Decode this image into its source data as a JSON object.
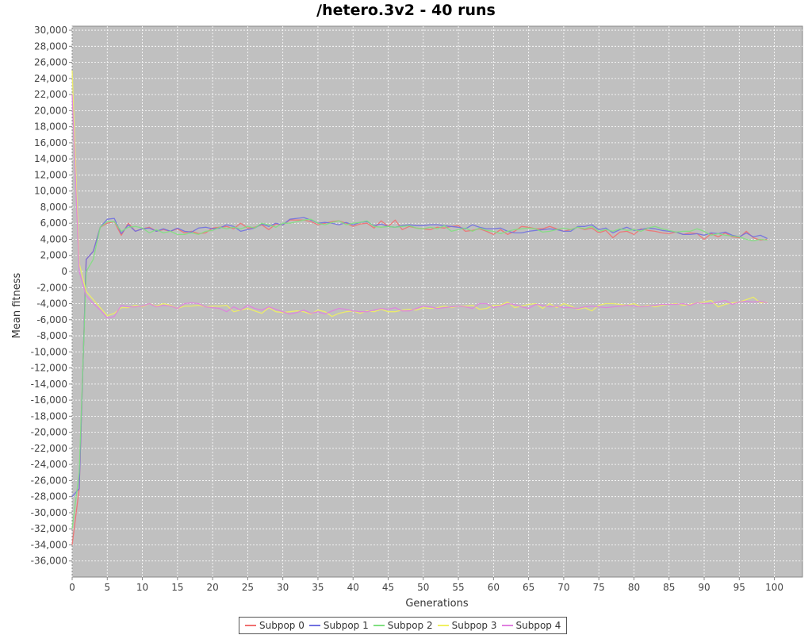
{
  "chart_data": {
    "type": "line",
    "title": "/hetero.3v2 - 40 runs",
    "xlabel": "Generations",
    "ylabel": "Mean fitness",
    "xlim": [
      0,
      104
    ],
    "ylim": [
      -38000,
      30500
    ],
    "xticks": [
      0,
      5,
      10,
      15,
      20,
      25,
      30,
      35,
      40,
      45,
      50,
      55,
      60,
      65,
      70,
      75,
      80,
      85,
      90,
      95,
      100
    ],
    "yticks": [
      30000,
      28000,
      26000,
      24000,
      22000,
      20000,
      18000,
      16000,
      14000,
      12000,
      10000,
      8000,
      6000,
      4000,
      2000,
      0,
      -2000,
      -4000,
      -6000,
      -8000,
      -10000,
      -12000,
      -14000,
      -16000,
      -18000,
      -20000,
      -22000,
      -24000,
      -26000,
      -28000,
      -30000,
      -32000,
      -34000,
      -36000
    ],
    "grid": true,
    "background": "#c0c0c0",
    "legend_position": "bottom",
    "x": [
      0,
      1,
      2,
      3,
      4,
      5,
      6,
      7,
      8,
      9,
      10,
      11,
      12,
      13,
      14,
      15,
      16,
      17,
      18,
      19,
      20,
      21,
      22,
      23,
      24,
      25,
      26,
      27,
      28,
      29,
      30,
      31,
      32,
      33,
      34,
      35,
      36,
      37,
      38,
      39,
      40,
      41,
      42,
      43,
      44,
      45,
      46,
      47,
      48,
      49,
      50,
      51,
      52,
      53,
      54,
      55,
      56,
      57,
      58,
      59,
      60,
      61,
      62,
      63,
      64,
      65,
      66,
      67,
      68,
      69,
      70,
      71,
      72,
      73,
      74,
      75,
      76,
      77,
      78,
      79,
      80,
      81,
      82,
      83,
      84,
      85,
      86,
      87,
      88,
      89,
      90,
      91,
      92,
      93,
      94,
      95,
      96,
      97,
      98,
      99
    ],
    "series": [
      {
        "name": "Subpop 0",
        "color": "#f07070",
        "values": [
          -34000,
          -27000,
          1500,
          2500,
          5500,
          6000,
          6200,
          4500,
          6000,
          5000,
          5300,
          5500,
          5000,
          5200,
          5000,
          5300,
          4800,
          5000,
          4700,
          4800,
          5400,
          5500,
          5600,
          5300,
          6000,
          5400,
          5500,
          5800,
          5200,
          5900,
          5800,
          6400,
          6400,
          6400,
          6200,
          5800,
          6000,
          6200,
          6300,
          6000,
          5600,
          5900,
          6000,
          5400,
          6300,
          5600,
          6400,
          5200,
          5600,
          5400,
          5300,
          5200,
          5500,
          5400,
          5600,
          5700,
          5000,
          5100,
          5300,
          5000,
          4600,
          5200,
          4600,
          5000,
          5600,
          5500,
          5300,
          5300,
          5600,
          5300,
          5000,
          5200,
          5500,
          5200,
          5400,
          4800,
          5100,
          4200,
          4900,
          5000,
          4600,
          5300,
          5100,
          5000,
          4800,
          4700,
          4900,
          4600,
          4800,
          4700,
          4000,
          4700,
          4300,
          4800,
          4300,
          4200,
          5000,
          4200,
          3900,
          4000
        ]
      },
      {
        "name": "Subpop 1",
        "color": "#7070e0",
        "values": [
          -28000,
          -27000,
          1500,
          2500,
          5500,
          6500,
          6600,
          4700,
          5800,
          5000,
          5300,
          5400,
          5000,
          5300,
          5000,
          5400,
          5000,
          4900,
          5400,
          5500,
          5300,
          5400,
          5800,
          5600,
          5000,
          5200,
          5400,
          5900,
          5600,
          6000,
          5800,
          6500,
          6600,
          6700,
          6400,
          6000,
          6100,
          6000,
          5800,
          6100,
          5800,
          6100,
          6200,
          5700,
          5900,
          5600,
          5500,
          5700,
          5800,
          5700,
          5700,
          5800,
          5800,
          5700,
          5600,
          5500,
          5300,
          5800,
          5500,
          5300,
          5300,
          5400,
          5000,
          4800,
          4800,
          5000,
          5100,
          5200,
          5300,
          5200,
          5000,
          5000,
          5600,
          5600,
          5800,
          5200,
          5400,
          4800,
          5200,
          5500,
          5100,
          5200,
          5400,
          5300,
          5100,
          5000,
          4900,
          4600,
          4600,
          4700,
          4500,
          4800,
          4700,
          4900,
          4500,
          4300,
          4800,
          4300,
          4500,
          4100
        ]
      },
      {
        "name": "Subpop 2",
        "color": "#80e080",
        "values": [
          -32000,
          -25000,
          0,
          1500,
          5500,
          6200,
          6200,
          5000,
          5500,
          5600,
          5400,
          4800,
          5200,
          4800,
          5000,
          4600,
          4600,
          4800,
          4600,
          5000,
          5100,
          5500,
          5300,
          5500,
          5300,
          5600,
          5400,
          6000,
          5800,
          5500,
          6000,
          6000,
          6200,
          6400,
          6500,
          6000,
          5800,
          6100,
          6300,
          5800,
          6000,
          6100,
          6300,
          5600,
          5500,
          5600,
          5500,
          5600,
          5700,
          5400,
          5300,
          5500,
          5300,
          5700,
          5000,
          5200,
          5400,
          5000,
          5400,
          5100,
          5000,
          4700,
          5000,
          5200,
          5300,
          5400,
          5300,
          4900,
          5000,
          5200,
          5400,
          5200,
          5500,
          5300,
          5600,
          5000,
          5200,
          5000,
          5300,
          5100,
          5200,
          5000,
          5400,
          5600,
          5300,
          5100,
          4900,
          5000,
          5000,
          5300,
          5000,
          4500,
          4700,
          4500,
          4400,
          4300,
          4000,
          3800,
          4000,
          3900
        ]
      },
      {
        "name": "Subpop 3",
        "color": "#f0f060",
        "values": [
          25000,
          1000,
          -2500,
          -3500,
          -4500,
          -5500,
          -5200,
          -4500,
          -4500,
          -4200,
          -4400,
          -4000,
          -4300,
          -4000,
          -4200,
          -4600,
          -4300,
          -4300,
          -4200,
          -4400,
          -4300,
          -4300,
          -4200,
          -5000,
          -4800,
          -4600,
          -4900,
          -5200,
          -4500,
          -5000,
          -5100,
          -5000,
          -4900,
          -5000,
          -5300,
          -4800,
          -5000,
          -5600,
          -5200,
          -5000,
          -4900,
          -5200,
          -4900,
          -5000,
          -4700,
          -5000,
          -5000,
          -4800,
          -4700,
          -4800,
          -4500,
          -4600,
          -4500,
          -4300,
          -4500,
          -4300,
          -4300,
          -4200,
          -4700,
          -4600,
          -4200,
          -4200,
          -3800,
          -4500,
          -4300,
          -4100,
          -4000,
          -4600,
          -4000,
          -4500,
          -4000,
          -4300,
          -4700,
          -4500,
          -4900,
          -4200,
          -4000,
          -4000,
          -4100,
          -4200,
          -4000,
          -4400,
          -4200,
          -4400,
          -4200,
          -4100,
          -4000,
          -4200,
          -4100,
          -3900,
          -3800,
          -3600,
          -4400,
          -4100,
          -3900,
          -3800,
          -3500,
          -3200,
          -3900,
          -3800
        ]
      },
      {
        "name": "Subpop 4",
        "color": "#e080e0",
        "values": [
          22000,
          0,
          -3000,
          -4000,
          -4800,
          -5800,
          -5600,
          -4200,
          -4400,
          -4400,
          -4300,
          -4000,
          -4400,
          -4200,
          -4300,
          -4600,
          -4000,
          -3900,
          -4000,
          -4400,
          -4500,
          -4600,
          -5000,
          -4400,
          -4800,
          -4200,
          -4600,
          -4800,
          -4400,
          -4700,
          -5000,
          -5300,
          -5100,
          -4800,
          -5200,
          -5000,
          -5300,
          -4900,
          -4600,
          -4700,
          -4900,
          -5000,
          -5000,
          -4800,
          -4600,
          -4700,
          -4500,
          -4900,
          -4900,
          -4600,
          -4300,
          -4400,
          -4600,
          -4500,
          -4400,
          -4300,
          -4400,
          -4600,
          -4000,
          -4000,
          -4500,
          -4300,
          -4000,
          -4100,
          -4400,
          -4600,
          -4100,
          -4200,
          -4400,
          -4300,
          -4500,
          -4500,
          -4600,
          -4400,
          -4300,
          -4400,
          -4500,
          -4400,
          -4300,
          -4200,
          -4300,
          -4400,
          -4300,
          -4200,
          -4100,
          -4100,
          -4100,
          -4000,
          -4200,
          -3900,
          -4000,
          -4000,
          -3800,
          -3600,
          -4100,
          -3800,
          -3700,
          -3800,
          -3700,
          -3900
        ]
      }
    ]
  }
}
